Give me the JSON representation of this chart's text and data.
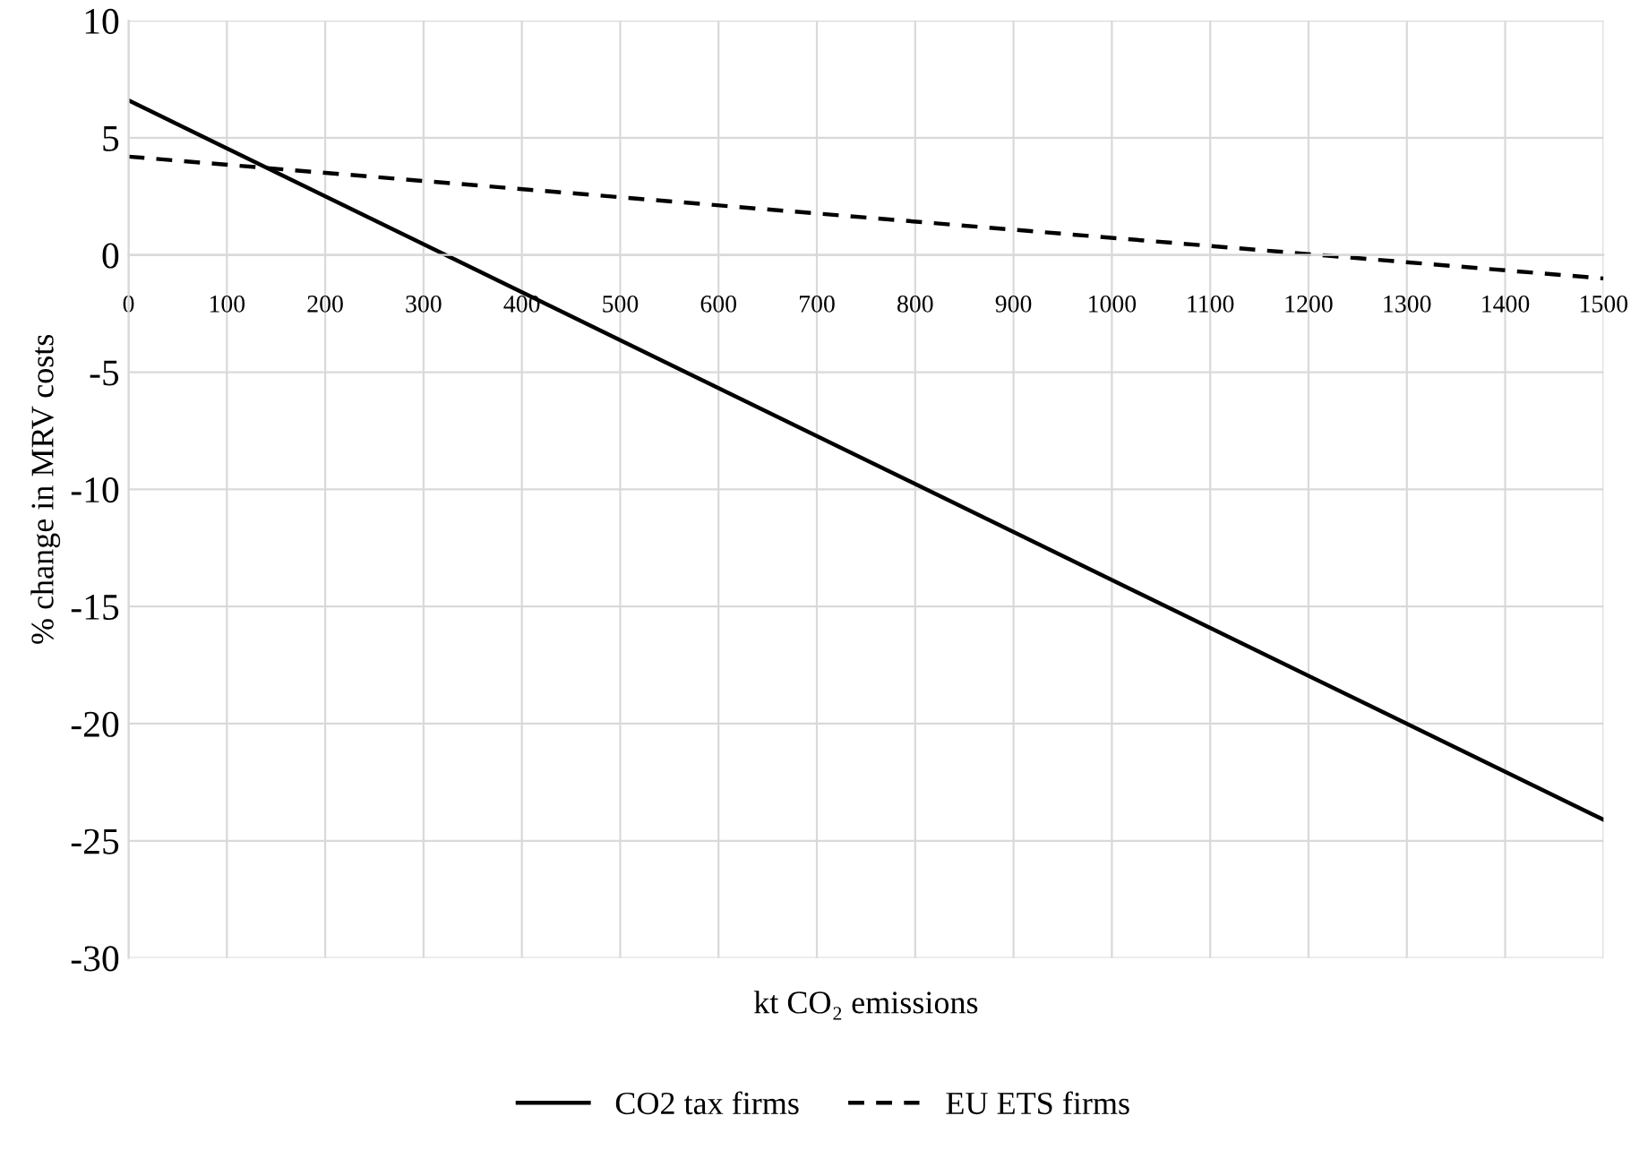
{
  "chart_data": {
    "type": "line",
    "xlabel": "kt CO₂ emissions",
    "ylabel": "% change in MRV costs",
    "x": [
      0,
      1500
    ],
    "series": [
      {
        "name": "CO2 tax firms",
        "color": "#000000",
        "values": [
          6.6,
          -24.1
        ],
        "line_style": "solid"
      },
      {
        "name": "EU ETS firms",
        "color": "#000000",
        "values": [
          4.2,
          -1.0
        ],
        "line_style": "dashed"
      }
    ],
    "xlim": [
      0,
      1500
    ],
    "xticks": [
      0,
      100,
      200,
      300,
      400,
      500,
      600,
      700,
      800,
      900,
      1000,
      1100,
      1200,
      1300,
      1400,
      1500
    ],
    "ylim": [
      -30,
      10
    ],
    "yticks": [
      -30,
      -25,
      -20,
      -15,
      -10,
      -5,
      0,
      5,
      10
    ],
    "grid": true,
    "legend": "bottom",
    "marker": "none"
  }
}
